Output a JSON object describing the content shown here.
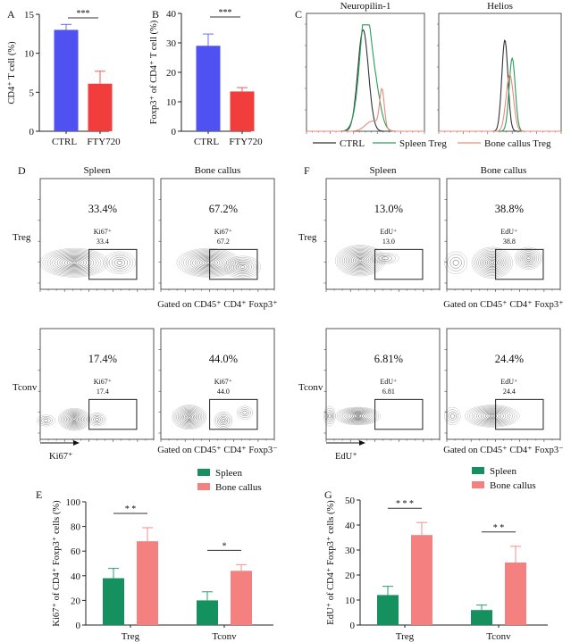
{
  "panels": {
    "A": {
      "label": "A"
    },
    "B": {
      "label": "B"
    },
    "C": {
      "label": "C"
    },
    "D": {
      "label": "D"
    },
    "E": {
      "label": "E"
    },
    "F": {
      "label": "F"
    },
    "G": {
      "label": "G"
    }
  },
  "colors": {
    "ctrl_bar": "#4f52f0",
    "fty_bar": "#f23d3d",
    "spleen": "#14915e",
    "bone_callus": "#f58080",
    "ctrl_line": "#333333",
    "spleen_line": "#2a9d5a",
    "bone_line": "#e98a7a"
  },
  "chart_data": [
    {
      "id": "A",
      "type": "bar",
      "title": "",
      "xlabel": "",
      "ylabel": "CD4⁺ T cell (%)",
      "categories": [
        "CTRL",
        "FTY720"
      ],
      "values": [
        13.0,
        6.1
      ],
      "errors": [
        0.7,
        1.6
      ],
      "ylim": [
        0,
        15
      ],
      "yticks": [
        "0",
        "5",
        "10",
        "15"
      ],
      "significance": [
        {
          "between": [
            "CTRL",
            "FTY720"
          ],
          "label": "***"
        }
      ]
    },
    {
      "id": "B",
      "type": "bar",
      "title": "",
      "xlabel": "",
      "ylabel": "Foxp3⁺ of CD4⁺ T cell (%)",
      "categories": [
        "CTRL",
        "FTY720"
      ],
      "values": [
        29.0,
        13.5
      ],
      "errors": [
        4.0,
        1.3
      ],
      "ylim": [
        0,
        40
      ],
      "yticks": [
        "0",
        "10",
        "20",
        "30",
        "40"
      ],
      "significance": [
        {
          "between": [
            "CTRL",
            "FTY720"
          ],
          "label": "***"
        }
      ]
    },
    {
      "id": "C",
      "type": "line",
      "subplots": [
        {
          "title": "Neuropilin-1",
          "series": [
            {
              "name": "CTRL",
              "peaks": [
                {
                  "x": 0.48,
                  "h": 1.0,
                  "w": 0.045
                }
              ]
            },
            {
              "name": "Spleen Treg",
              "peaks": [
                {
                  "x": 0.5,
                  "h": 0.83,
                  "w": 0.04
                },
                {
                  "x": 0.57,
                  "h": 0.5,
                  "w": 0.05
                },
                {
                  "x": 0.46,
                  "h": 0.3,
                  "w": 0.05
                }
              ]
            },
            {
              "name": "Bone callus Treg",
              "peaks": [
                {
                  "x": 0.64,
                  "h": 0.38,
                  "w": 0.02
                },
                {
                  "x": 0.56,
                  "h": 0.1,
                  "w": 0.06
                }
              ]
            }
          ]
        },
        {
          "title": "Helios",
          "series": [
            {
              "name": "CTRL",
              "peaks": [
                {
                  "x": 0.54,
                  "h": 0.9,
                  "w": 0.025
                }
              ]
            },
            {
              "name": "Spleen Treg",
              "peaks": [
                {
                  "x": 0.6,
                  "h": 0.72,
                  "w": 0.025
                }
              ]
            },
            {
              "name": "Bone callus Treg",
              "peaks": [
                {
                  "x": 0.58,
                  "h": 0.56,
                  "w": 0.03
                }
              ]
            }
          ]
        }
      ],
      "legend": [
        "CTRL",
        "Spleen Treg",
        "Bone callus Treg"
      ],
      "legend_position": "bottom"
    },
    {
      "id": "D",
      "type": "scatter",
      "marker": "Ki67⁺",
      "column_titles": [
        "Spleen",
        "Bone callus"
      ],
      "row_labels": [
        "Treg",
        "Tconv"
      ],
      "gate_label": "Ki67⁺",
      "gating_notes": [
        "Gated on CD45⁺ CD4⁺ Foxp3⁺",
        "Gated on CD45⁺ CD4⁺ Foxp3⁻"
      ],
      "axis_arrow_label": "Ki67⁺",
      "cells": [
        {
          "row": "Treg",
          "col": "Spleen",
          "percent": "33.4%",
          "gate_value": "33.4"
        },
        {
          "row": "Treg",
          "col": "Bone callus",
          "percent": "67.2%",
          "gate_value": "67.2"
        },
        {
          "row": "Tconv",
          "col": "Spleen",
          "percent": "17.4%",
          "gate_value": "17.4"
        },
        {
          "row": "Tconv",
          "col": "Bone callus",
          "percent": "44.0%",
          "gate_value": "44.0"
        }
      ]
    },
    {
      "id": "F",
      "type": "scatter",
      "marker": "EdU⁺",
      "column_titles": [
        "Spleen",
        "Bone callus"
      ],
      "row_labels": [
        "Treg",
        "Tconv"
      ],
      "gate_label": "EdU⁺",
      "gating_notes": [
        "Gated on CD45⁺ CD4⁺ Foxp3⁺",
        "Gated on CD45⁺ CD4⁺ Foxp3⁻"
      ],
      "axis_arrow_label": "EdU⁺",
      "cells": [
        {
          "row": "Treg",
          "col": "Spleen",
          "percent": "13.0%",
          "gate_value": "13.0"
        },
        {
          "row": "Treg",
          "col": "Bone callus",
          "percent": "38.8%",
          "gate_value": "38.8"
        },
        {
          "row": "Tconv",
          "col": "Spleen",
          "percent": "6.81%",
          "gate_value": "6.81"
        },
        {
          "row": "Tconv",
          "col": "Bone callus",
          "percent": "24.4%",
          "gate_value": "24.4"
        }
      ]
    },
    {
      "id": "E",
      "type": "bar",
      "title": "",
      "xlabel": "",
      "ylabel": "Ki67⁺ of CD4⁺ Foxp3⁺ cells (%)",
      "categories": [
        "Treg",
        "Tconv"
      ],
      "series": [
        {
          "name": "Spleen",
          "values": [
            38,
            20
          ],
          "errors": [
            8,
            7
          ]
        },
        {
          "name": "Bone callus",
          "values": [
            68,
            44
          ],
          "errors": [
            11,
            5
          ]
        }
      ],
      "ylim": [
        0,
        100
      ],
      "yticks": [
        "0",
        "20",
        "40",
        "60",
        "80",
        "100"
      ],
      "legend_position": "top-right",
      "significance": [
        {
          "category": "Treg",
          "label": "* *"
        },
        {
          "category": "Tconv",
          "label": "*"
        }
      ]
    },
    {
      "id": "G",
      "type": "bar",
      "title": "",
      "xlabel": "",
      "ylabel": "EdU⁺ of CD4⁺ Foxp3⁺ cells (%)",
      "categories": [
        "Treg",
        "Tconv"
      ],
      "series": [
        {
          "name": "Spleen",
          "values": [
            12,
            6
          ],
          "errors": [
            3.5,
            2
          ]
        },
        {
          "name": "Bone callus",
          "values": [
            36,
            25
          ],
          "errors": [
            5,
            6.5
          ]
        }
      ],
      "ylim": [
        0,
        50
      ],
      "yticks": [
        "0",
        "10",
        "20",
        "30",
        "40",
        "50"
      ],
      "legend_position": "top-right",
      "significance": [
        {
          "category": "Treg",
          "label": "* * *"
        },
        {
          "category": "Tconv",
          "label": "* *"
        }
      ]
    }
  ]
}
